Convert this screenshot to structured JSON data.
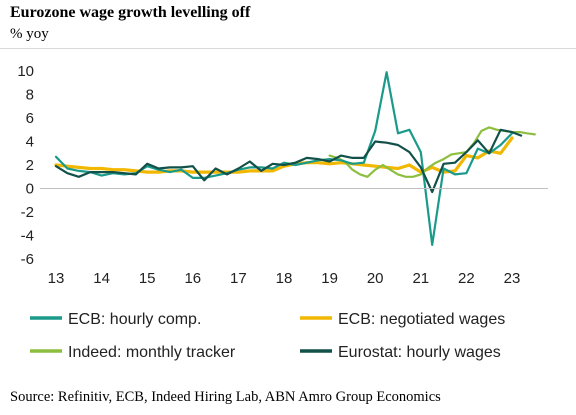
{
  "header": {
    "title": "Eurozone wage growth levelling off",
    "subtitle": "% yoy"
  },
  "footer": {
    "source": "Source: Refinitiv, ECB, Indeed Hiring Lab, ABN Amro Group Economics"
  },
  "chart_data": {
    "type": "line",
    "title": "Eurozone wage growth levelling off",
    "ylabel": "% yoy",
    "xlabel": "",
    "ylim": [
      -6,
      10
    ],
    "xlim": [
      2013,
      2023.6
    ],
    "yticks": [
      "10",
      "8",
      "6",
      "4",
      "2",
      "0",
      "-2",
      "-4",
      "-6"
    ],
    "xticks": [
      "13",
      "14",
      "15",
      "16",
      "17",
      "18",
      "19",
      "20",
      "21",
      "22",
      "23"
    ],
    "grid": false,
    "legend_position": "bottom",
    "series": [
      {
        "name": "ECB: hourly comp.",
        "color": "#1a9a8a",
        "x": [
          2013.0,
          2013.25,
          2013.5,
          2013.75,
          2014.0,
          2014.25,
          2014.5,
          2014.75,
          2015.0,
          2015.25,
          2015.5,
          2015.75,
          2016.0,
          2016.25,
          2016.5,
          2016.75,
          2017.0,
          2017.25,
          2017.5,
          2017.75,
          2018.0,
          2018.25,
          2018.5,
          2018.75,
          2019.0,
          2019.25,
          2019.5,
          2019.75,
          2020.0,
          2020.25,
          2020.5,
          2020.75,
          2021.0,
          2021.25,
          2021.5,
          2021.75,
          2022.0,
          2022.25,
          2022.5,
          2022.75,
          2023.0
        ],
        "values": [
          2.7,
          1.7,
          1.5,
          1.4,
          1.1,
          1.3,
          1.2,
          1.3,
          1.9,
          1.6,
          1.4,
          1.6,
          0.9,
          0.9,
          1.1,
          1.3,
          1.6,
          1.8,
          1.8,
          1.7,
          2.2,
          2.0,
          2.2,
          2.4,
          2.5,
          2.4,
          2.1,
          2.2,
          4.9,
          9.9,
          4.7,
          5.0,
          3.1,
          -4.8,
          1.7,
          1.2,
          1.3,
          3.4,
          3.0,
          3.7,
          4.7
        ]
      },
      {
        "name": "ECB: negotiated wages",
        "color": "#f2b700",
        "x": [
          2013.0,
          2013.25,
          2013.5,
          2013.75,
          2014.0,
          2014.25,
          2014.5,
          2014.75,
          2015.0,
          2015.25,
          2015.5,
          2015.75,
          2016.0,
          2016.25,
          2016.5,
          2016.75,
          2017.0,
          2017.25,
          2017.5,
          2017.75,
          2018.0,
          2018.25,
          2018.5,
          2018.75,
          2019.0,
          2019.25,
          2019.5,
          2019.75,
          2020.0,
          2020.25,
          2020.5,
          2020.75,
          2021.0,
          2021.25,
          2021.5,
          2021.75,
          2022.0,
          2022.25,
          2022.5,
          2022.75,
          2023.0
        ],
        "values": [
          2.0,
          1.9,
          1.8,
          1.7,
          1.7,
          1.6,
          1.6,
          1.5,
          1.4,
          1.4,
          1.5,
          1.5,
          1.4,
          1.4,
          1.4,
          1.4,
          1.4,
          1.5,
          1.5,
          1.5,
          1.9,
          2.1,
          2.2,
          2.2,
          2.1,
          2.2,
          2.1,
          2.0,
          1.9,
          1.8,
          1.7,
          2.0,
          1.4,
          1.8,
          1.4,
          1.5,
          2.8,
          2.6,
          3.2,
          3.0,
          4.3
        ]
      },
      {
        "name": "Indeed: monthly tracker",
        "color": "#8cbf3f",
        "x": [
          2019.0,
          2019.17,
          2019.33,
          2019.5,
          2019.67,
          2019.83,
          2020.0,
          2020.17,
          2020.33,
          2020.5,
          2020.67,
          2020.83,
          2021.0,
          2021.17,
          2021.33,
          2021.5,
          2021.67,
          2021.83,
          2022.0,
          2022.17,
          2022.33,
          2022.5,
          2022.67,
          2022.83,
          2023.0,
          2023.17,
          2023.33,
          2023.5
        ],
        "values": [
          2.8,
          2.6,
          2.3,
          1.6,
          1.2,
          1.0,
          1.6,
          2.0,
          1.6,
          1.2,
          1.0,
          1.0,
          1.2,
          1.8,
          2.2,
          2.5,
          2.9,
          3.0,
          3.1,
          3.9,
          4.9,
          5.2,
          5.0,
          4.9,
          4.8,
          4.8,
          4.7,
          4.6
        ]
      },
      {
        "name": "Eurostat: hourly wages",
        "color": "#12504a",
        "x": [
          2013.0,
          2013.25,
          2013.5,
          2013.75,
          2014.0,
          2014.25,
          2014.5,
          2014.75,
          2015.0,
          2015.25,
          2015.5,
          2015.75,
          2016.0,
          2016.25,
          2016.5,
          2016.75,
          2017.0,
          2017.25,
          2017.5,
          2017.75,
          2018.0,
          2018.25,
          2018.5,
          2018.75,
          2019.0,
          2019.25,
          2019.5,
          2019.75,
          2020.0,
          2020.25,
          2020.5,
          2020.75,
          2021.0,
          2021.25,
          2021.5,
          2021.75,
          2022.0,
          2022.25,
          2022.5,
          2022.75,
          2023.0,
          2023.2
        ],
        "values": [
          1.9,
          1.3,
          1.0,
          1.4,
          1.4,
          1.4,
          1.3,
          1.2,
          2.1,
          1.7,
          1.8,
          1.8,
          1.9,
          0.7,
          1.7,
          1.2,
          1.7,
          2.3,
          1.5,
          2.1,
          2.0,
          2.2,
          2.6,
          2.5,
          2.3,
          2.8,
          2.6,
          2.6,
          4.0,
          3.9,
          3.7,
          3.1,
          1.8,
          -0.3,
          2.1,
          2.2,
          3.1,
          4.1,
          3.0,
          5.0,
          4.8,
          4.5
        ]
      }
    ]
  }
}
